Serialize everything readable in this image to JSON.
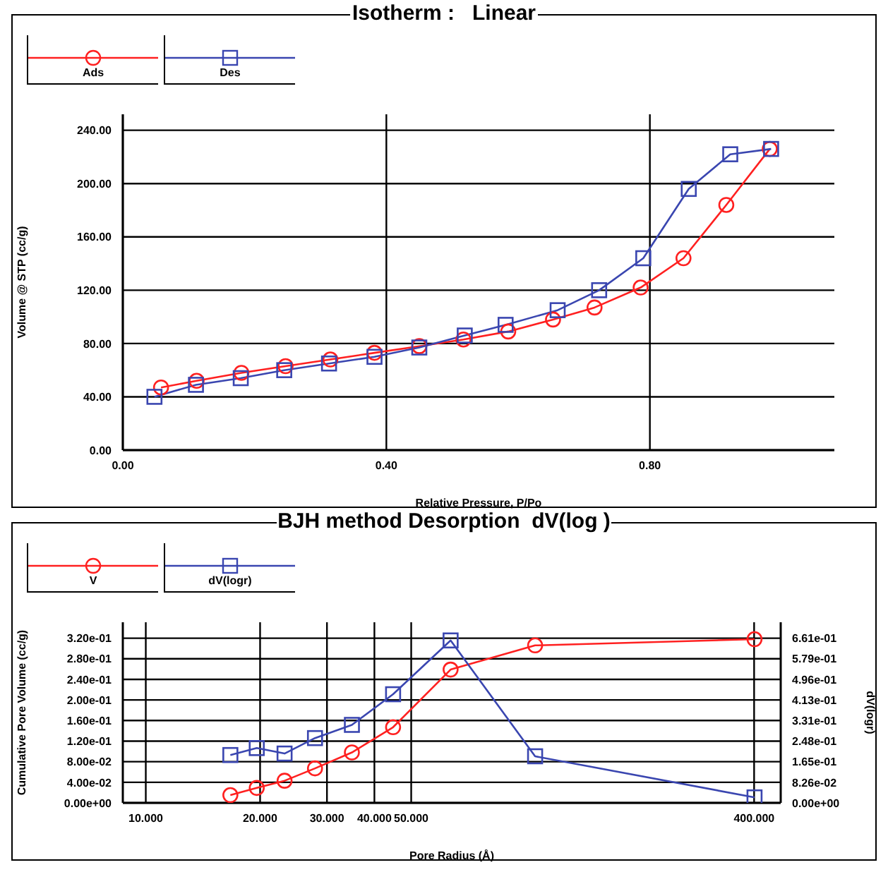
{
  "chart_data": [
    {
      "type": "line",
      "title": "Isotherm :   Linear",
      "xlabel": "Relative Pressure, P/Po",
      "ylabel": "Volume @ STP (cc/g)",
      "xlim": [
        0,
        1.08
      ],
      "xticks": [
        {
          "value": 0,
          "label": "0.00"
        },
        {
          "value": 0.4,
          "label": "0.40"
        },
        {
          "value": 0.8,
          "label": "0.80"
        }
      ],
      "ylim": [
        0,
        252
      ],
      "yticks": [
        {
          "value": 0,
          "label": "0.00"
        },
        {
          "value": 40,
          "label": "40.00"
        },
        {
          "value": 80,
          "label": "80.00"
        },
        {
          "value": 120,
          "label": "120.00"
        },
        {
          "value": 160,
          "label": "160.00"
        },
        {
          "value": 200,
          "label": "200.00"
        },
        {
          "value": 240,
          "label": "240.00"
        }
      ],
      "grid": true,
      "legend": "top left",
      "series": [
        {
          "name": "Ads",
          "color": "#ff2020",
          "marker": "circle",
          "x": [
            0.058,
            0.112,
            0.18,
            0.247,
            0.315,
            0.382,
            0.45,
            0.517,
            0.585,
            0.653,
            0.716,
            0.786,
            0.851,
            0.916,
            0.982
          ],
          "values": [
            47,
            52,
            58,
            63,
            68,
            73,
            78,
            83,
            89,
            98,
            107,
            122,
            144,
            184,
            226
          ]
        },
        {
          "name": "Des",
          "color": "#3a46b0",
          "marker": "square",
          "x": [
            0.048,
            0.111,
            0.179,
            0.245,
            0.313,
            0.382,
            0.45,
            0.519,
            0.581,
            0.66,
            0.723,
            0.79,
            0.859,
            0.922,
            0.984
          ],
          "values": [
            40,
            49,
            54,
            60,
            65,
            70,
            77,
            86,
            94,
            105,
            120,
            144,
            196,
            222,
            226
          ]
        }
      ]
    },
    {
      "type": "line",
      "title": "BJH method Desorption  dV(log )",
      "xlabel": "Pore Radius (Å)",
      "ylabel": "Cumulative Pore Volume (cc/g)",
      "y2label": "dV(logr)",
      "log": "x",
      "xlim": [
        8.7,
        470
      ],
      "xticks": [
        {
          "value": 10,
          "label": "10.000"
        },
        {
          "value": 20,
          "label": "20.000"
        },
        {
          "value": 30,
          "label": "30.000"
        },
        {
          "value": 40,
          "label": "40.000"
        },
        {
          "value": 50,
          "label": "50.000"
        },
        {
          "value": 400,
          "label": "400.000"
        }
      ],
      "ylim": [
        0,
        0.351
      ],
      "yticks": [
        {
          "value": 0,
          "label": "0.00e+00"
        },
        {
          "value": 0.04,
          "label": "4.00e-02"
        },
        {
          "value": 0.08,
          "label": "8.00e-02"
        },
        {
          "value": 0.12,
          "label": "1.20e-01"
        },
        {
          "value": 0.16,
          "label": "1.60e-01"
        },
        {
          "value": 0.2,
          "label": "2.00e-01"
        },
        {
          "value": 0.24,
          "label": "2.40e-01"
        },
        {
          "value": 0.28,
          "label": "2.80e-01"
        },
        {
          "value": 0.32,
          "label": "3.20e-01"
        }
      ],
      "y2lim": [
        0,
        0.725
      ],
      "y2ticks": [
        {
          "value": 0,
          "label": "0.00e+00"
        },
        {
          "value": 0.0826,
          "label": "8.26e-02"
        },
        {
          "value": 0.165,
          "label": "1.65e-01"
        },
        {
          "value": 0.248,
          "label": "2.48e-01"
        },
        {
          "value": 0.331,
          "label": "3.31e-01"
        },
        {
          "value": 0.413,
          "label": "4.13e-01"
        },
        {
          "value": 0.496,
          "label": "4.96e-01"
        },
        {
          "value": 0.579,
          "label": "5.79e-01"
        },
        {
          "value": 0.661,
          "label": "6.61e-01"
        }
      ],
      "grid": true,
      "legend": "top left",
      "series": [
        {
          "name": "V",
          "color": "#ff2020",
          "marker": "circle",
          "x": [
            16.7,
            19.6,
            23.2,
            27.9,
            34.9,
            44.8,
            63.5,
            106,
            401
          ],
          "values": [
            0.015,
            0.029,
            0.043,
            0.067,
            0.098,
            0.147,
            0.259,
            0.306,
            0.318
          ]
        },
        {
          "name": "dV(logr)",
          "color": "#3a46b0",
          "marker": "square",
          "axis": "y2",
          "x": [
            16.7,
            19.6,
            23.2,
            27.9,
            34.9,
            44.8,
            63.5,
            106,
            401
          ],
          "values": [
            0.192,
            0.22,
            0.198,
            0.26,
            0.313,
            0.436,
            0.652,
            0.187,
            0.022
          ]
        }
      ]
    }
  ]
}
